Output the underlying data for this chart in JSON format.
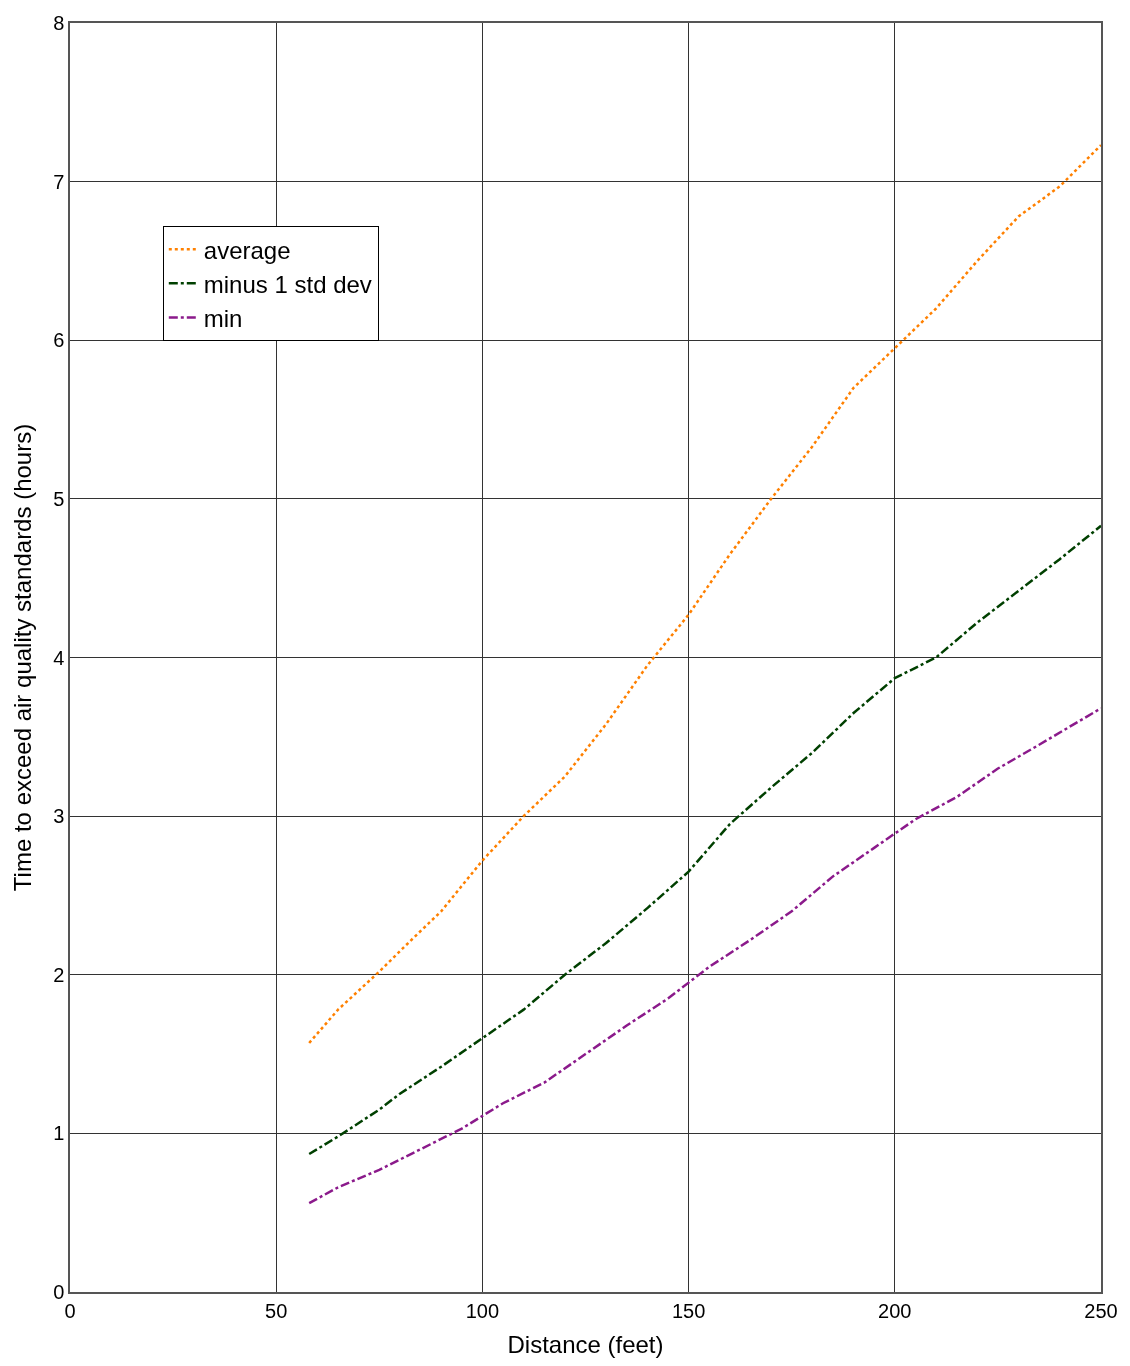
{
  "chart_data": {
    "type": "line",
    "xlabel": "Distance (feet)",
    "ylabel": "Time to exceed air quality standards (hours)",
    "xlim": [
      0,
      250
    ],
    "xticks": [
      0,
      50,
      100,
      150,
      200,
      250
    ],
    "ylim": [
      0,
      8
    ],
    "yticks": [
      0,
      1,
      2,
      3,
      4,
      5,
      6,
      7,
      8
    ],
    "grid": true,
    "legend": "top left",
    "marker": "none",
    "series": [
      {
        "name": "average",
        "color": "#ff8000",
        "line_style": "dotted",
        "x": [
          58,
          65,
          75,
          82,
          90,
          100,
          110,
          120,
          130,
          140,
          150,
          160,
          170,
          180,
          190,
          200,
          210,
          220,
          230,
          240,
          250
        ],
        "values": [
          1.57,
          1.78,
          2.02,
          2.2,
          2.4,
          2.72,
          3.0,
          3.25,
          3.58,
          3.95,
          4.27,
          4.65,
          5.0,
          5.33,
          5.7,
          5.95,
          6.2,
          6.5,
          6.78,
          6.97,
          7.23
        ]
      },
      {
        "name": "minus 1 std dev",
        "color": "#004000",
        "line_style": "dashed",
        "x": [
          58,
          65,
          75,
          80,
          90,
          100,
          110,
          120,
          130,
          140,
          150,
          160,
          170,
          180,
          190,
          200,
          210,
          220,
          230,
          240,
          250
        ],
        "values": [
          0.87,
          0.98,
          1.15,
          1.25,
          1.42,
          1.6,
          1.78,
          2.0,
          2.2,
          2.42,
          2.65,
          2.95,
          3.18,
          3.4,
          3.65,
          3.87,
          4.0,
          4.22,
          4.42,
          4.62,
          4.83
        ]
      },
      {
        "name": "min",
        "color": "#8b1a8b",
        "line_style": "dashed",
        "x": [
          58,
          65,
          75,
          85,
          95,
          105,
          115,
          125,
          135,
          145,
          155,
          165,
          175,
          185,
          195,
          205,
          215,
          225,
          235,
          250
        ],
        "values": [
          0.56,
          0.66,
          0.77,
          0.9,
          1.03,
          1.19,
          1.32,
          1.5,
          1.68,
          1.85,
          2.05,
          2.22,
          2.4,
          2.62,
          2.8,
          2.98,
          3.12,
          3.3,
          3.45,
          3.68
        ]
      }
    ]
  }
}
